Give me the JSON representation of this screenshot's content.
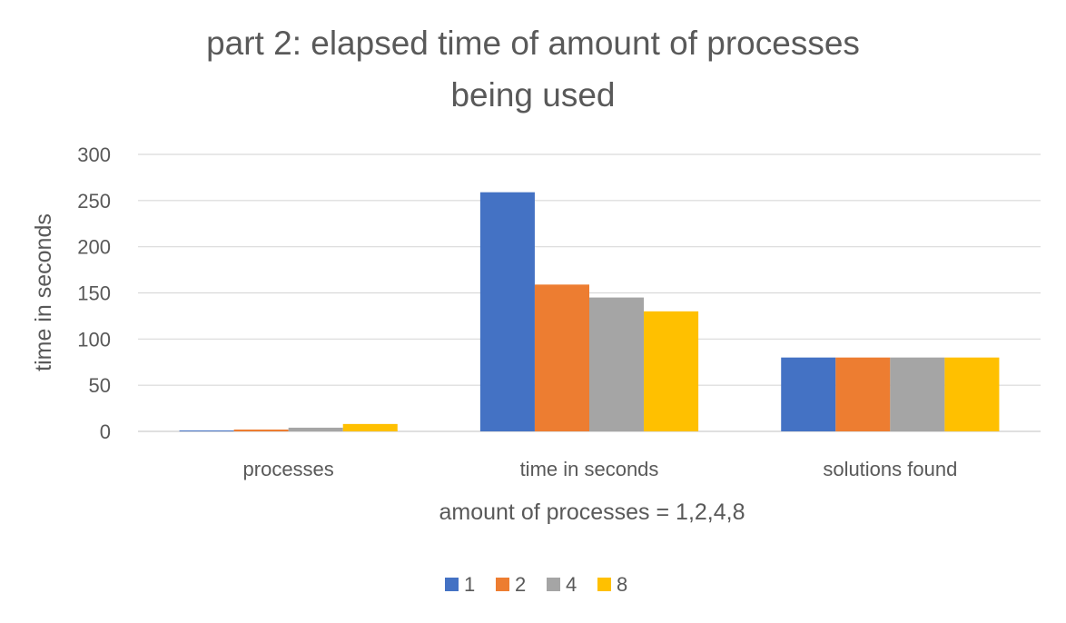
{
  "chart_data": {
    "type": "bar",
    "title_lines": [
      "part 2: elapsed time of amount of processes",
      "being used"
    ],
    "xlabel": "amount of processes = 1,2,4,8",
    "ylabel": "time in seconds",
    "ylim": [
      0,
      300
    ],
    "yticks": [
      "0",
      "50",
      "100",
      "150",
      "200",
      "250",
      "300"
    ],
    "grid": true,
    "legend_position": "bottom",
    "categories": [
      "processes",
      "time in seconds",
      "solutions found"
    ],
    "series": [
      {
        "name": "1",
        "color": "#4472c4",
        "values": [
          1,
          259,
          80
        ]
      },
      {
        "name": "2",
        "color": "#ed7d31",
        "values": [
          2,
          159,
          80
        ]
      },
      {
        "name": "4",
        "color": "#a5a5a5",
        "values": [
          4,
          145,
          80
        ]
      },
      {
        "name": "8",
        "color": "#ffc000",
        "values": [
          8,
          130,
          80
        ]
      }
    ]
  }
}
